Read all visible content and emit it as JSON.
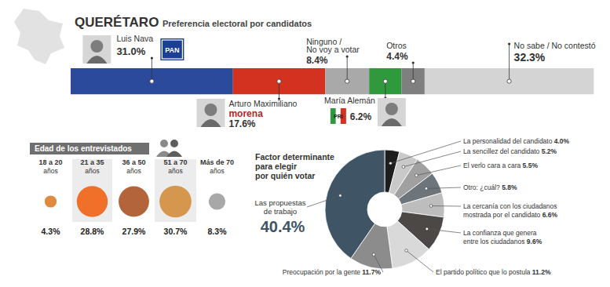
{
  "chart_data": [
    {
      "type": "bar",
      "orientation": "horizontal",
      "stacked": true,
      "title": "QUERÉTARO",
      "subtitle": "Preferencia electoral por candidatos",
      "xlim": [
        0,
        100
      ],
      "tick_labels": false,
      "data_labels": true,
      "series": [
        {
          "name": "Luis Nava",
          "party": "PAN",
          "color": "#2b4a9c",
          "values": [
            31.0
          ],
          "value_labels": [
            "31.0%"
          ]
        },
        {
          "name": "Arturo Maximiliano",
          "party": "morena",
          "color": "#d2321f",
          "values": [
            17.6
          ],
          "value_labels": [
            "17.6%"
          ]
        },
        {
          "name": "Ninguno / No voy a votar",
          "color": "#a9a9a9",
          "values": [
            8.4
          ],
          "value_labels": [
            "8.4%"
          ]
        },
        {
          "name": "María Alemán",
          "party": "PRI",
          "color": "#2e9a3d",
          "values": [
            6.2
          ],
          "value_labels": [
            "6.2%"
          ]
        },
        {
          "name": "Otros",
          "color": "#7f7f7f",
          "values": [
            4.4
          ],
          "value_labels": [
            "4.4%"
          ]
        },
        {
          "name": "No sabe / No contestó",
          "color": "#d4d4d4",
          "values": [
            32.3
          ],
          "value_labels": [
            "32.3%"
          ]
        }
      ]
    },
    {
      "type": "bubble",
      "title": "Edad de los entrevistados",
      "tick_labels": "x",
      "data_labels": true,
      "categories": [
        "18 a 20 años",
        "21 a 35 años",
        "36 a 50 años",
        "51 a 70 años",
        "Más de 70 años"
      ],
      "values": [
        4.3,
        28.8,
        27.9,
        30.7,
        8.3
      ],
      "value_labels": [
        "4.3%",
        "28.8%",
        "27.9%",
        "30.7%",
        "8.3%"
      ],
      "colors": [
        "#e08a40",
        "#f0702a",
        "#b3643a",
        "#d4974d",
        "#a8a8a8"
      ]
    },
    {
      "type": "pie",
      "title": "Factor determinante para elegir por quién votar",
      "data_labels": true,
      "categories": [
        "La personalidad del candidato",
        "La sencillez del candidato",
        "El verlo cara a cara",
        "Otro: ¿cuál?",
        "La cercanía con los ciudadanos mostrada por el candidato",
        "La confianza que genera entre los ciudadanos",
        "El partido político que lo postula",
        "Preocupación por la gente",
        "Las propuestas de trabajo"
      ],
      "values": [
        4.0,
        5.2,
        5.5,
        5.8,
        6.6,
        9.6,
        11.2,
        11.7,
        40.4
      ],
      "value_labels": [
        "4.0%",
        "5.2%",
        "5.5%",
        "5.8%",
        "6.6%",
        "9.6%",
        "11.2%",
        "11.7%",
        "40.4%"
      ],
      "colors": [
        "#1e1e1e",
        "#c9c9c9",
        "#a0a0a0",
        "#6d747a",
        "#bdbdbd",
        "#4b4845",
        "#d9d9d9",
        "#8c8c8c",
        "#3f5566"
      ]
    }
  ]
}
